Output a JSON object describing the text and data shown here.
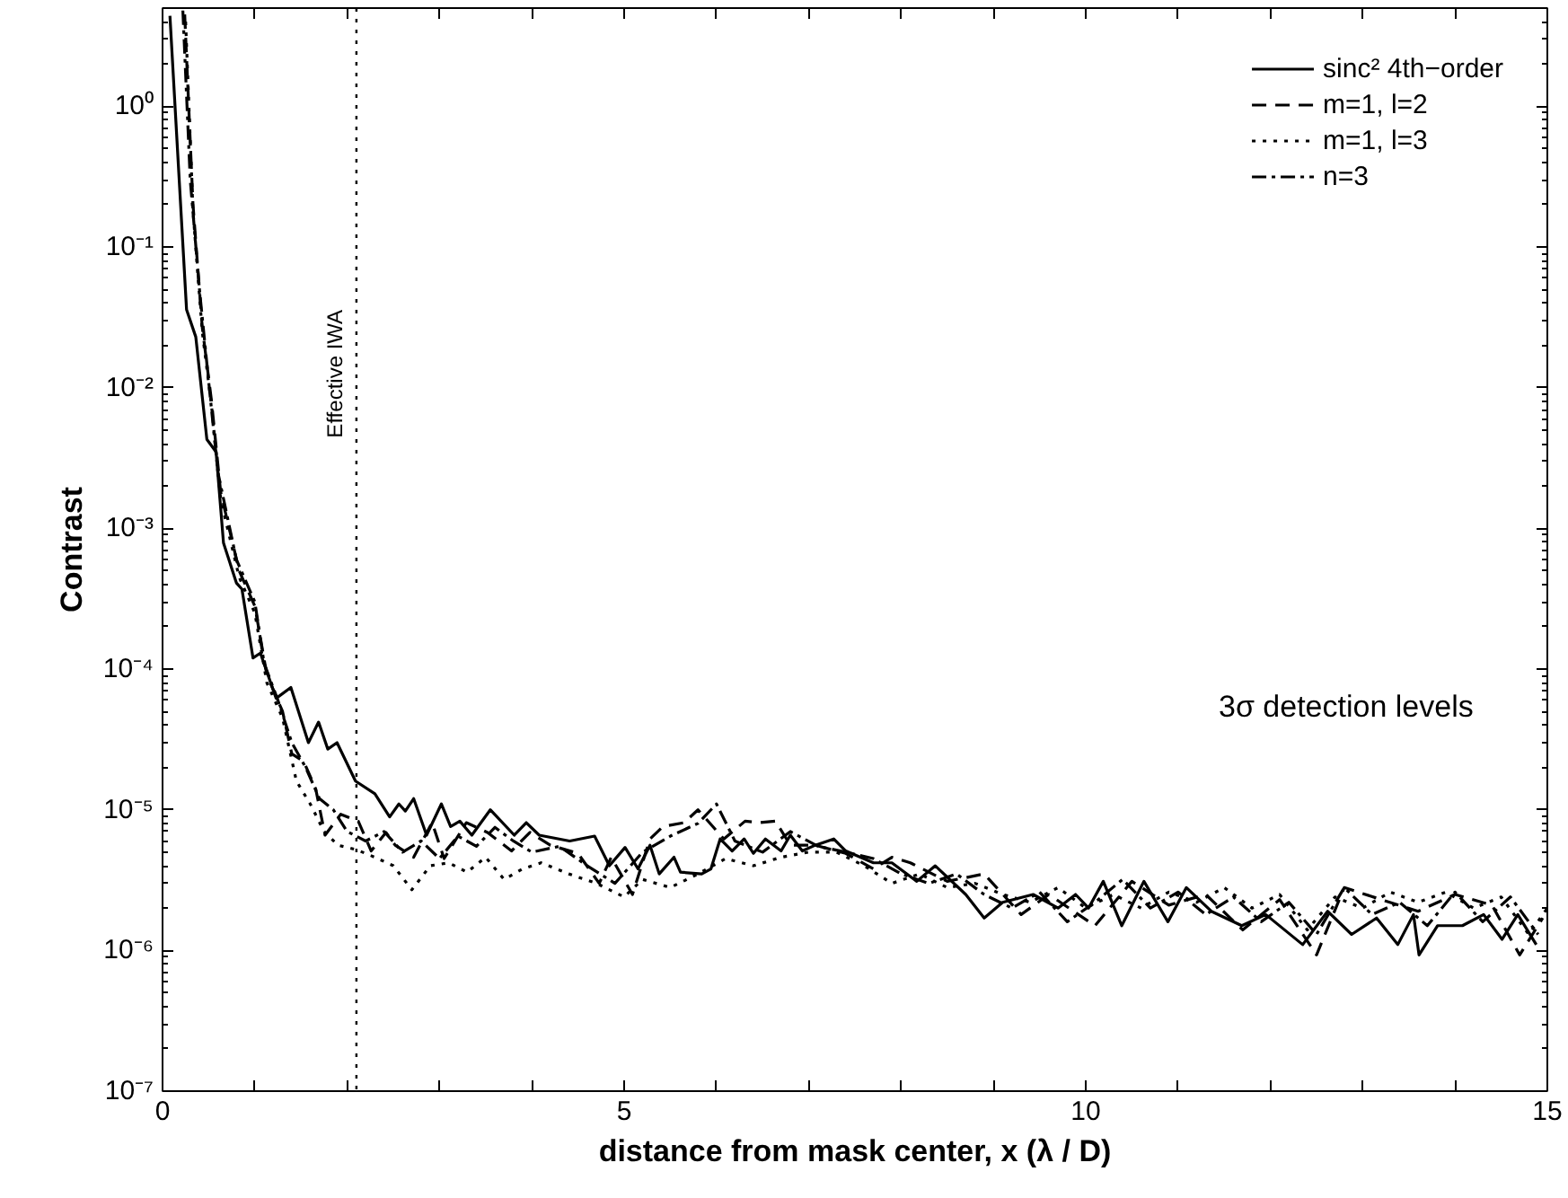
{
  "chart_data": {
    "type": "line",
    "xlabel": "distance from mask center, x (λ / D)",
    "ylabel": "Contrast",
    "log": "y",
    "xlim": [
      0,
      15
    ],
    "ylim": [
      1e-07,
      5
    ],
    "xticks": [
      0,
      {
        "value": 1,
        "label": null
      },
      {
        "value": 2,
        "label": null
      },
      {
        "value": 3,
        "label": null
      },
      {
        "value": 4,
        "label": null
      },
      5,
      {
        "value": 6,
        "label": null
      },
      {
        "value": 7,
        "label": null
      },
      {
        "value": 8,
        "label": null
      },
      {
        "value": 9,
        "label": null
      },
      10,
      {
        "value": 11,
        "label": null
      },
      {
        "value": 12,
        "label": null
      },
      {
        "value": 13,
        "label": null
      },
      {
        "value": 14,
        "label": null
      },
      15
    ],
    "yticks": [
      {
        "value": 1e-07,
        "label": "10⁻⁷"
      },
      {
        "value": 1e-06,
        "label": "10⁻⁶"
      },
      {
        "value": 1e-05,
        "label": "10⁻⁵"
      },
      {
        "value": 0.0001,
        "label": "10⁻⁴"
      },
      {
        "value": 0.001,
        "label": "10⁻³"
      },
      {
        "value": 0.01,
        "label": "10⁻²"
      },
      {
        "value": 0.1,
        "label": "10⁻¹"
      },
      {
        "value": 1,
        "label": "10⁰"
      }
    ],
    "grid": false,
    "legend": "top right",
    "series": [
      {
        "name": "sinc² 4th−order",
        "color": "#000000",
        "line_style": "solid",
        "x": [
          0.08,
          0.26,
          0.36,
          0.48,
          0.58,
          0.66,
          0.8,
          0.86,
          0.98,
          1.06,
          1.23,
          1.39,
          1.58,
          1.69,
          1.79,
          1.89,
          2.09,
          2.3,
          2.46,
          2.56,
          2.63,
          2.72,
          2.86,
          3.02,
          3.12,
          3.22,
          3.35,
          3.55,
          3.81,
          3.94,
          4.08,
          4.41,
          4.68,
          4.84,
          5.01,
          5.15,
          5.28,
          5.38,
          5.54,
          5.61,
          5.84,
          5.94,
          6.04,
          6.17,
          6.3,
          6.4,
          6.53,
          6.7,
          6.8,
          6.93,
          7.07,
          7.27,
          7.4,
          7.7,
          7.9,
          8.17,
          8.37,
          8.7,
          8.9,
          9.1,
          9.43,
          9.7,
          9.89,
          10.03,
          10.19,
          10.39,
          10.63,
          10.89,
          11.09,
          11.36,
          11.69,
          11.95,
          12.35,
          12.62,
          12.88,
          13.15,
          13.38,
          13.55,
          13.61,
          13.81,
          14.08,
          14.31,
          14.51,
          14.68,
          14.88
        ],
        "values": [
          4.4,
          0.036,
          0.023,
          0.0043,
          0.0035,
          0.00079,
          0.00041,
          0.00037,
          0.00012,
          0.00013,
          6.2e-05,
          7.4e-05,
          3e-05,
          4.2e-05,
          2.7e-05,
          3e-05,
          1.6e-05,
          1.3e-05,
          8.9e-06,
          1.1e-05,
          9.8e-06,
          1.2e-05,
          6.6e-06,
          1.1e-05,
          7.6e-06,
          8.3e-06,
          6.6e-06,
          1e-05,
          6.6e-06,
          8.1e-06,
          6.6e-06,
          6e-06,
          6.5e-06,
          4e-06,
          5.4e-06,
          3.8e-06,
          5.6e-06,
          3.5e-06,
          4.6e-06,
          3.6e-06,
          3.5e-06,
          3.8e-06,
          6.2e-06,
          5.1e-06,
          6.2e-06,
          4.9e-06,
          6.2e-06,
          5.1e-06,
          6.6e-06,
          5.1e-06,
          5.6e-06,
          6.2e-06,
          5.1e-06,
          4.2e-06,
          4.2e-06,
          3.1e-06,
          4e-06,
          2.5e-06,
          1.7e-06,
          2.2e-06,
          2.5e-06,
          2e-06,
          2.5e-06,
          2e-06,
          3.1e-06,
          1.5e-06,
          3.1e-06,
          1.6e-06,
          2.8e-06,
          1.9e-06,
          1.5e-06,
          1.8e-06,
          1.1e-06,
          1.9e-06,
          1.3e-06,
          1.7e-06,
          1.1e-06,
          1.8e-06,
          9.3e-07,
          1.5e-06,
          1.5e-06,
          1.8e-06,
          1.2e-06,
          1.8e-06,
          1.1e-06
        ]
      },
      {
        "name": "m=1, l=2",
        "color": "#000000",
        "line_style": "dashed",
        "x": [
          0.24,
          0.33,
          0.43,
          0.53,
          0.63,
          0.83,
          1.0,
          1.13,
          1.3,
          1.4,
          1.53,
          1.66,
          1.76,
          1.93,
          2.12,
          2.26,
          2.42,
          2.52,
          2.72,
          2.92,
          3.05,
          3.29,
          3.52,
          3.78,
          3.98,
          4.2,
          4.5,
          4.73,
          4.86,
          5.09,
          5.28,
          5.42,
          5.65,
          5.8,
          6.08,
          6.31,
          6.47,
          6.64,
          6.8,
          7.07,
          7.4,
          7.7,
          7.9,
          8.1,
          8.5,
          8.9,
          9.3,
          9.6,
          10.1,
          10.5,
          10.9,
          11.3,
          11.7,
          12.1,
          12.5,
          12.8,
          13.2,
          13.6,
          14.0,
          14.4,
          14.7,
          14.95
        ],
        "values": [
          4.5,
          0.2,
          0.027,
          0.0081,
          0.0018,
          0.0005,
          0.00028,
          9.1e-05,
          5e-05,
          2.5e-05,
          2.2e-05,
          1.4e-05,
          6.6e-06,
          9.3e-06,
          8.3e-06,
          5.1e-06,
          6.9e-06,
          5.6e-06,
          4.6e-06,
          8.1e-06,
          4.5e-06,
          8.1e-06,
          6.9e-06,
          5.1e-06,
          6.9e-06,
          5.6e-06,
          4.9e-06,
          3e-06,
          4.6e-06,
          2.5e-06,
          6.2e-06,
          7.6e-06,
          8.1e-06,
          1e-05,
          6.2e-06,
          8.3e-06,
          8.1e-06,
          8.3e-06,
          5.6e-06,
          5.6e-06,
          4.9e-06,
          3.8e-06,
          4.6e-06,
          4.2e-06,
          3.1e-06,
          3.5e-06,
          1.8e-06,
          2.5e-06,
          1.5e-06,
          3.1e-06,
          2.1e-06,
          2.5e-06,
          1.4e-06,
          2.3e-06,
          9.3e-07,
          2.8e-06,
          2.3e-06,
          1.9e-06,
          2.5e-06,
          2.1e-06,
          9.3e-07,
          1.7e-06
        ]
      },
      {
        "name": "m=1, l=3",
        "color": "#000000",
        "line_style": "dotted",
        "x": [
          0.25,
          0.33,
          0.43,
          0.53,
          0.63,
          0.83,
          1.0,
          1.13,
          1.3,
          1.45,
          1.6,
          1.75,
          1.9,
          2.1,
          2.3,
          2.5,
          2.7,
          2.9,
          3.1,
          3.3,
          3.5,
          3.7,
          3.9,
          4.1,
          4.4,
          4.7,
          5.0,
          5.2,
          5.5,
          5.8,
          6.1,
          6.4,
          6.7,
          7.0,
          7.3,
          7.6,
          7.9,
          8.2,
          8.5,
          8.8,
          9.1,
          9.4,
          9.7,
          10.0,
          10.3,
          10.6,
          10.9,
          11.2,
          11.5,
          11.8,
          12.1,
          12.4,
          12.7,
          13.0,
          13.3,
          13.6,
          13.9,
          14.2,
          14.5,
          14.8,
          15.0
        ],
        "values": [
          4.0,
          0.18,
          0.025,
          0.0075,
          0.0016,
          0.00045,
          0.00025,
          8e-05,
          4.5e-05,
          1.6e-05,
          1.1e-05,
          7e-06,
          5.6e-06,
          5.2e-06,
          4.6e-06,
          4e-06,
          2.7e-06,
          4e-06,
          4.2e-06,
          3.6e-06,
          4.6e-06,
          3.2e-06,
          3.8e-06,
          4.2e-06,
          3.5e-06,
          3e-06,
          2.4e-06,
          3.2e-06,
          2.8e-06,
          3.5e-06,
          4.5e-06,
          4e-06,
          4.6e-06,
          5e-06,
          5e-06,
          4e-06,
          3e-06,
          3.5e-06,
          2.8e-06,
          3e-06,
          2.5e-06,
          2.2e-06,
          2.8e-06,
          2e-06,
          2.5e-06,
          2e-06,
          2.6e-06,
          2.2e-06,
          2.8e-06,
          2e-06,
          2.5e-06,
          1.4e-06,
          2.4e-06,
          2e-06,
          2.6e-06,
          2.2e-06,
          2.6e-06,
          2e-06,
          2.4e-06,
          1.3e-06,
          2e-06
        ]
      },
      {
        "name": "n=3",
        "color": "#000000",
        "line_style": "dashdot",
        "x": [
          0.22,
          0.3,
          0.4,
          0.5,
          0.6,
          0.8,
          1.0,
          1.1,
          1.25,
          1.4,
          1.55,
          1.7,
          1.85,
          2.0,
          2.2,
          2.4,
          2.6,
          2.8,
          3.0,
          3.2,
          3.4,
          3.6,
          3.8,
          4.0,
          4.3,
          4.6,
          4.9,
          5.2,
          5.5,
          5.8,
          6.0,
          6.2,
          6.5,
          6.8,
          7.1,
          7.4,
          7.7,
          8.0,
          8.3,
          8.6,
          8.9,
          9.2,
          9.5,
          9.8,
          10.1,
          10.4,
          10.7,
          11.0,
          11.3,
          11.6,
          11.9,
          12.2,
          12.5,
          12.8,
          13.1,
          13.4,
          13.7,
          14.0,
          14.3,
          14.6,
          14.9
        ],
        "values": [
          4.8,
          0.3,
          0.05,
          0.011,
          0.0025,
          0.0006,
          0.0003,
          0.00011,
          6e-05,
          3e-05,
          2e-05,
          1.2e-05,
          1e-05,
          7e-06,
          6e-06,
          7e-06,
          5e-06,
          6e-06,
          4.5e-06,
          6.5e-06,
          5.5e-06,
          7.5e-06,
          6e-06,
          5e-06,
          5.5e-06,
          4e-06,
          3e-06,
          5e-06,
          6.5e-06,
          8e-06,
          1.1e-05,
          6e-06,
          5e-06,
          7e-06,
          5.5e-06,
          5e-06,
          4.5e-06,
          3.5e-06,
          3e-06,
          3.5e-06,
          2.5e-06,
          2e-06,
          2.6e-06,
          1.6e-06,
          2.2e-06,
          3.2e-06,
          2e-06,
          2.6e-06,
          1.8e-06,
          2.4e-06,
          1.6e-06,
          2.2e-06,
          1.3e-06,
          2.8e-06,
          1.8e-06,
          2.2e-06,
          1.5e-06,
          2.6e-06,
          1.6e-06,
          2.4e-06,
          1.3e-06
        ]
      }
    ],
    "ref_lines": [
      {
        "axis": "x",
        "value": 2.1,
        "label": "Effective IWA",
        "color": "#000000",
        "line_style": "dotted"
      }
    ],
    "annotations": [
      "3σ detection levels"
    ]
  }
}
